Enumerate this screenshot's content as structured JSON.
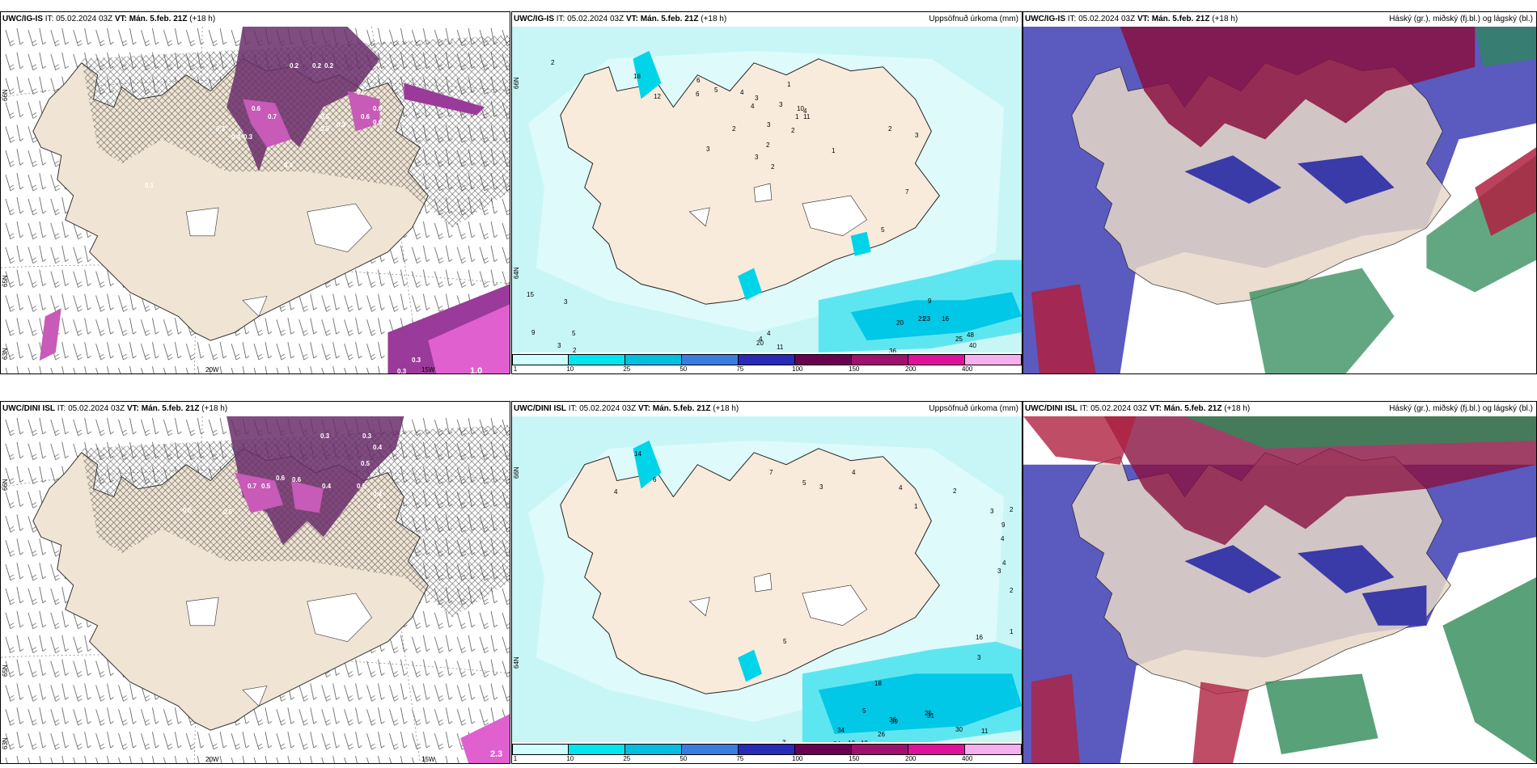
{
  "panels": [
    {
      "id": "p1",
      "model": "UWC/IG-IS",
      "it_label": "IT:",
      "it_value": "05.02.2024 03Z",
      "vt_label": "VT:",
      "vt_value": "Mán. 5.feb. 21Z",
      "lead": "(+18 h)",
      "title_right": "",
      "lat_labels": [
        "66N",
        "65N",
        "63N"
      ],
      "lon_labels": [
        "20W",
        "15W"
      ],
      "values": [
        "0.2",
        "0.2",
        "0.2",
        "0.6",
        "0.5",
        "0.6",
        "0.7",
        "0.5",
        "0.3",
        "0.6",
        "0.5",
        "0.6",
        "0.3",
        "0.4",
        "0.3",
        "0.3",
        "0.1",
        "0.3",
        "0.3",
        "1.0"
      ]
    },
    {
      "id": "p2",
      "model": "UWC/IG-IS",
      "it_label": "IT:",
      "it_value": "05.02.2024 03Z",
      "vt_label": "VT:",
      "vt_value": "Mán. 5.feb. 21Z",
      "lead": "(+18 h)",
      "title_right": "Uppsöfnuð úrkoma (mm)",
      "lat_labels": [
        "66N",
        "64N"
      ],
      "values": [
        "2",
        "18",
        "12",
        "6",
        "6",
        "5",
        "4",
        "1",
        "3",
        "3",
        "4",
        "1",
        "2",
        "3",
        "10",
        "11",
        "4",
        "3",
        "2",
        "3",
        "2",
        "2",
        "1",
        "7",
        "2",
        "3",
        "5",
        "9",
        "21",
        "16",
        "23",
        "20",
        "48",
        "40",
        "25",
        "36",
        "37",
        "29",
        "16",
        "10",
        "11",
        "20",
        "4",
        "4",
        "15",
        "9",
        "5",
        "3",
        "3",
        "3",
        "2"
      ]
    },
    {
      "id": "p3",
      "model": "UWC/IG-IS",
      "it_label": "IT:",
      "it_value": "05.02.2024 03Z",
      "vt_label": "VT:",
      "vt_value": "Mán. 5.feb. 21Z",
      "lead": "(+18 h)",
      "title_right": "Háský (gr.), miðský (fj.bl.) og lágský (bl.)"
    },
    {
      "id": "p4",
      "model": "UWC/DINI ISL",
      "it_label": "IT:",
      "it_value": "05.02.2024 03Z",
      "vt_label": "VT:",
      "vt_value": "Mán. 5.feb. 21Z",
      "lead": "(+18 h)",
      "title_right": "",
      "lat_labels": [
        "66N",
        "65N",
        "63N"
      ],
      "lon_labels": [
        "20W",
        "15W"
      ],
      "values": [
        "0.3",
        "0.4",
        "0.5",
        "0.7",
        "0.5",
        "0.6",
        "0.6",
        "0.4",
        "0.5",
        "0.4",
        "0.4",
        "0.5",
        "0.5",
        "0.3",
        "2.3"
      ]
    },
    {
      "id": "p5",
      "model": "UWC/DINI ISL",
      "it_label": "IT:",
      "it_value": "05.02.2024 03Z",
      "vt_label": "VT:",
      "vt_value": "Mán. 5.feb. 21Z",
      "lead": "(+18 h)",
      "title_right": "Uppsöfnuð úrkoma (mm)",
      "lat_labels": [
        "66N",
        "64N"
      ],
      "values": [
        "14",
        "4",
        "6",
        "7",
        "5",
        "4",
        "3",
        "4",
        "2",
        "1",
        "2",
        "3",
        "9",
        "4",
        "4",
        "3",
        "2",
        "1",
        "16",
        "5",
        "3",
        "18",
        "5",
        "25",
        "31",
        "39",
        "34",
        "26",
        "36",
        "30",
        "11",
        "19",
        "24",
        "12",
        "7",
        "6",
        "3",
        "2",
        "1",
        "2",
        "1"
      ]
    },
    {
      "id": "p6",
      "model": "UWC/DINI ISL",
      "it_label": "IT:",
      "it_value": "05.02.2024 03Z",
      "vt_label": "VT:",
      "vt_value": "Mán. 5.feb. 21Z",
      "lead": "(+18 h)",
      "title_right": "Háský (gr.), miðský (fj.bl.) og lágský (bl.)"
    }
  ],
  "colorbar": {
    "labels": [
      "1",
      "10",
      "25",
      "50",
      "75",
      "100",
      "150",
      "200",
      "400"
    ],
    "colors": [
      "#cfffff",
      "#00e5ee",
      "#00bfe0",
      "#3a7de0",
      "#2a2ab8",
      "#6a0050",
      "#a0106e",
      "#e0109a",
      "#f5b0f0"
    ]
  },
  "colors": {
    "land": "#f0e4d4",
    "sea": "#ffffff",
    "precip_light": "#b8f4f4",
    "precip_mid": "#00d4e8",
    "precip_heavy": "#00b0d8",
    "snow_purple": "#6a2e6a",
    "snow_pink": "#c85ab8",
    "cloud_high": "#2e8a58",
    "cloud_mid": "#8a1040",
    "cloud_low": "#4848b8"
  }
}
